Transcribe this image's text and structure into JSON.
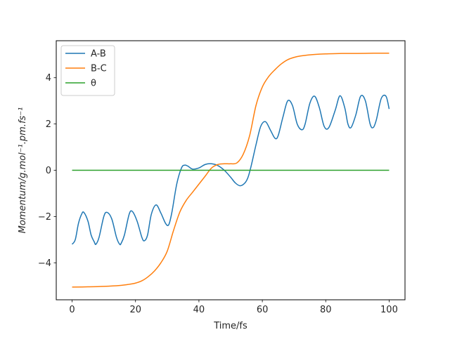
{
  "chart_data": {
    "type": "line",
    "title": "",
    "xlabel": "Time/fs",
    "ylabel": "Momentum/g.mol⁻¹.pm.fs⁻¹",
    "xlim": [
      -5,
      105
    ],
    "ylim": [
      -5.6,
      5.6
    ],
    "xticks": [
      0,
      20,
      40,
      60,
      80,
      100
    ],
    "yticks": [
      -4,
      -2,
      0,
      2,
      4
    ],
    "grid": false,
    "legend_position": "top-left",
    "series": [
      {
        "name": "A-B",
        "color": "#1f77b4",
        "x": [
          0,
          1,
          2,
          3,
          3.7,
          5,
          6,
          7,
          7.5,
          8.5,
          10,
          11,
          12.5,
          14,
          15,
          15.5,
          16.5,
          18,
          19,
          20.5,
          22,
          22.8,
          23.8,
          25,
          26.5,
          28,
          29.5,
          30.5,
          31.5,
          33,
          34.5,
          35.5,
          36.5,
          38,
          40,
          42,
          44,
          46,
          48,
          50,
          51.5,
          53,
          54.5,
          55.5,
          56.5,
          58,
          59.5,
          61,
          62.5,
          64,
          65,
          66.5,
          68,
          69.5,
          71,
          72.5,
          73.5,
          75,
          76.5,
          78,
          79.5,
          81,
          83,
          84.5,
          86,
          87,
          88,
          89.5,
          91,
          92.5,
          94,
          95,
          96,
          97.5,
          99,
          100
        ],
        "y": [
          -3.2,
          -3.0,
          -2.3,
          -1.9,
          -1.82,
          -2.2,
          -2.8,
          -3.1,
          -3.2,
          -2.9,
          -2.0,
          -1.82,
          -2.1,
          -2.9,
          -3.2,
          -3.15,
          -2.8,
          -1.9,
          -1.78,
          -2.2,
          -2.9,
          -3.05,
          -2.8,
          -1.9,
          -1.5,
          -1.85,
          -2.3,
          -2.35,
          -1.8,
          -0.6,
          0.1,
          0.22,
          0.18,
          0.05,
          0.1,
          0.25,
          0.28,
          0.2,
          0.0,
          -0.3,
          -0.55,
          -0.67,
          -0.55,
          -0.3,
          0.2,
          1.1,
          1.9,
          2.1,
          1.75,
          1.38,
          1.5,
          2.3,
          3.0,
          2.8,
          2.0,
          1.75,
          2.0,
          2.9,
          3.2,
          2.7,
          1.9,
          1.85,
          2.6,
          3.22,
          2.7,
          2.0,
          1.85,
          2.4,
          3.2,
          3.0,
          2.0,
          1.85,
          2.2,
          3.1,
          3.2,
          2.65
        ]
      },
      {
        "name": "B-C",
        "color": "#ff7f0e",
        "x": [
          0,
          5,
          10,
          15,
          18,
          20,
          22,
          24,
          26,
          28,
          30,
          32,
          34,
          36,
          38,
          40,
          42,
          44,
          46,
          48,
          50,
          52,
          54,
          56,
          58,
          60,
          62,
          64,
          66,
          68,
          70,
          72,
          75,
          78,
          80,
          85,
          90,
          95,
          100
        ],
        "y": [
          -5.05,
          -5.04,
          -5.02,
          -4.98,
          -4.93,
          -4.88,
          -4.78,
          -4.6,
          -4.35,
          -4.0,
          -3.5,
          -2.6,
          -1.8,
          -1.3,
          -0.95,
          -0.6,
          -0.25,
          0.1,
          0.25,
          0.28,
          0.28,
          0.32,
          0.7,
          1.5,
          2.8,
          3.6,
          4.05,
          4.35,
          4.6,
          4.78,
          4.88,
          4.94,
          4.99,
          5.02,
          5.03,
          5.05,
          5.05,
          5.06,
          5.06
        ]
      },
      {
        "name": "θ",
        "color": "#2ca02c",
        "x": [
          0,
          100
        ],
        "y": [
          0.0,
          0.0
        ]
      }
    ]
  }
}
